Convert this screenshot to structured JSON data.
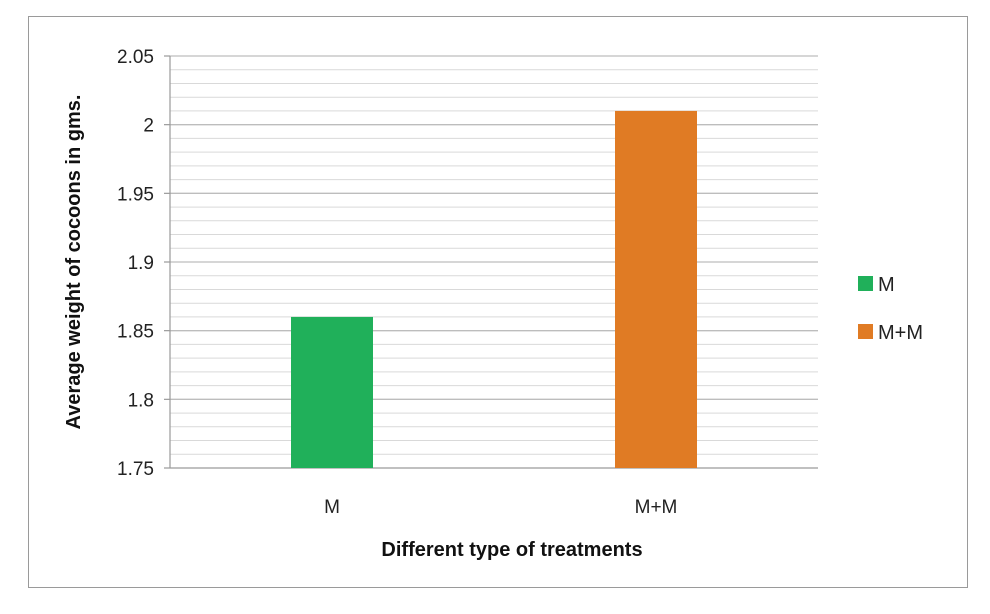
{
  "chart_data": {
    "type": "bar",
    "categories": [
      "M",
      "M+M"
    ],
    "values": [
      1.86,
      2.01
    ],
    "colors": [
      "#20b05a",
      "#e07b24"
    ],
    "title": "",
    "xlabel": "Different type of treatments",
    "ylabel": "Average weight of cocoons in gms.",
    "ylim": [
      1.75,
      2.05
    ],
    "yticks": [
      "1.75",
      "1.8",
      "1.85",
      "1.9",
      "1.95",
      "2",
      "2.05"
    ],
    "ytick_values": [
      1.75,
      1.8,
      1.85,
      1.9,
      1.95,
      2.0,
      2.05
    ],
    "minor_grid_step": 0.01,
    "grid": true,
    "legend": {
      "placement": "right",
      "entries": [
        "M",
        "M+M"
      ]
    }
  }
}
